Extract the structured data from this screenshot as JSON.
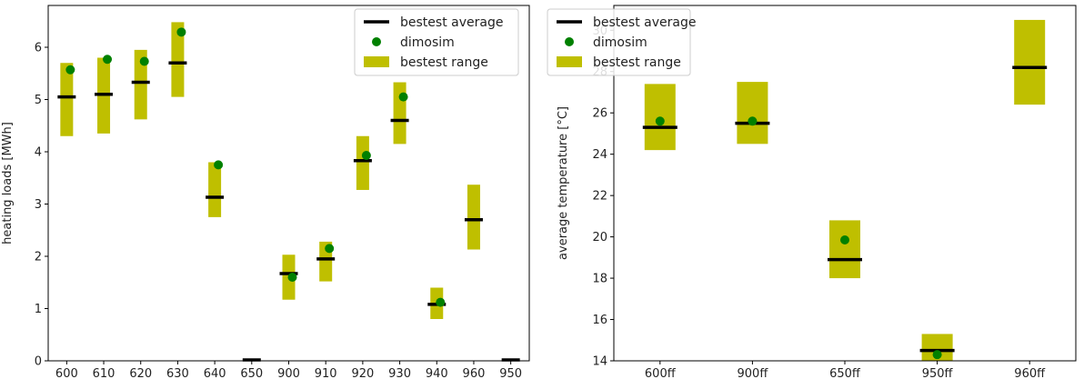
{
  "chart_data": [
    {
      "type": "bar",
      "ylabel": "heating loads [MWh]",
      "xlabel": "",
      "ylim": [
        0,
        6.8
      ],
      "yticks": [
        0,
        1,
        2,
        3,
        4,
        5,
        6
      ],
      "categories": [
        "600",
        "610",
        "620",
        "630",
        "640",
        "650",
        "900",
        "910",
        "920",
        "930",
        "940",
        "960",
        "950"
      ],
      "series": [
        {
          "name": "bestest average",
          "values": [
            5.05,
            5.1,
            5.33,
            5.7,
            3.13,
            0.0,
            1.67,
            1.95,
            3.83,
            4.6,
            1.08,
            2.7,
            0.0
          ]
        },
        {
          "name": "dimosim",
          "values": [
            5.57,
            5.77,
            5.73,
            6.29,
            3.75,
            null,
            1.6,
            2.15,
            3.93,
            5.05,
            1.12,
            null,
            null
          ]
        },
        {
          "name": "bestest range",
          "low": [
            4.3,
            4.35,
            4.62,
            5.05,
            2.75,
            null,
            1.17,
            1.52,
            3.27,
            4.15,
            0.8,
            2.13,
            null
          ],
          "high": [
            5.7,
            5.8,
            5.95,
            6.48,
            3.8,
            null,
            2.03,
            2.28,
            4.3,
            5.33,
            1.4,
            3.37,
            null
          ]
        }
      ],
      "grid": false,
      "legend": "top-right",
      "colors": {
        "average": "#000000",
        "dimosim": "#008000",
        "range": "#bfbf00"
      }
    },
    {
      "type": "bar",
      "ylabel": "average temperature [°C]",
      "xlabel": "",
      "ylim": [
        14,
        31.2
      ],
      "yticks": [
        14,
        16,
        18,
        20,
        22,
        24,
        26,
        28,
        30
      ],
      "categories": [
        "600ff",
        "900ff",
        "650ff",
        "950ff",
        "960ff"
      ],
      "series": [
        {
          "name": "bestest average",
          "values": [
            25.3,
            25.5,
            18.9,
            14.5,
            28.2
          ]
        },
        {
          "name": "dimosim",
          "values": [
            25.6,
            25.6,
            19.85,
            14.3,
            null
          ]
        },
        {
          "name": "bestest range",
          "low": [
            24.2,
            24.5,
            18.0,
            13.8,
            26.4
          ],
          "high": [
            27.4,
            27.5,
            20.8,
            15.3,
            30.5
          ]
        }
      ],
      "grid": false,
      "legend": "top-left",
      "colors": {
        "average": "#000000",
        "dimosim": "#008000",
        "range": "#bfbf00"
      }
    }
  ]
}
